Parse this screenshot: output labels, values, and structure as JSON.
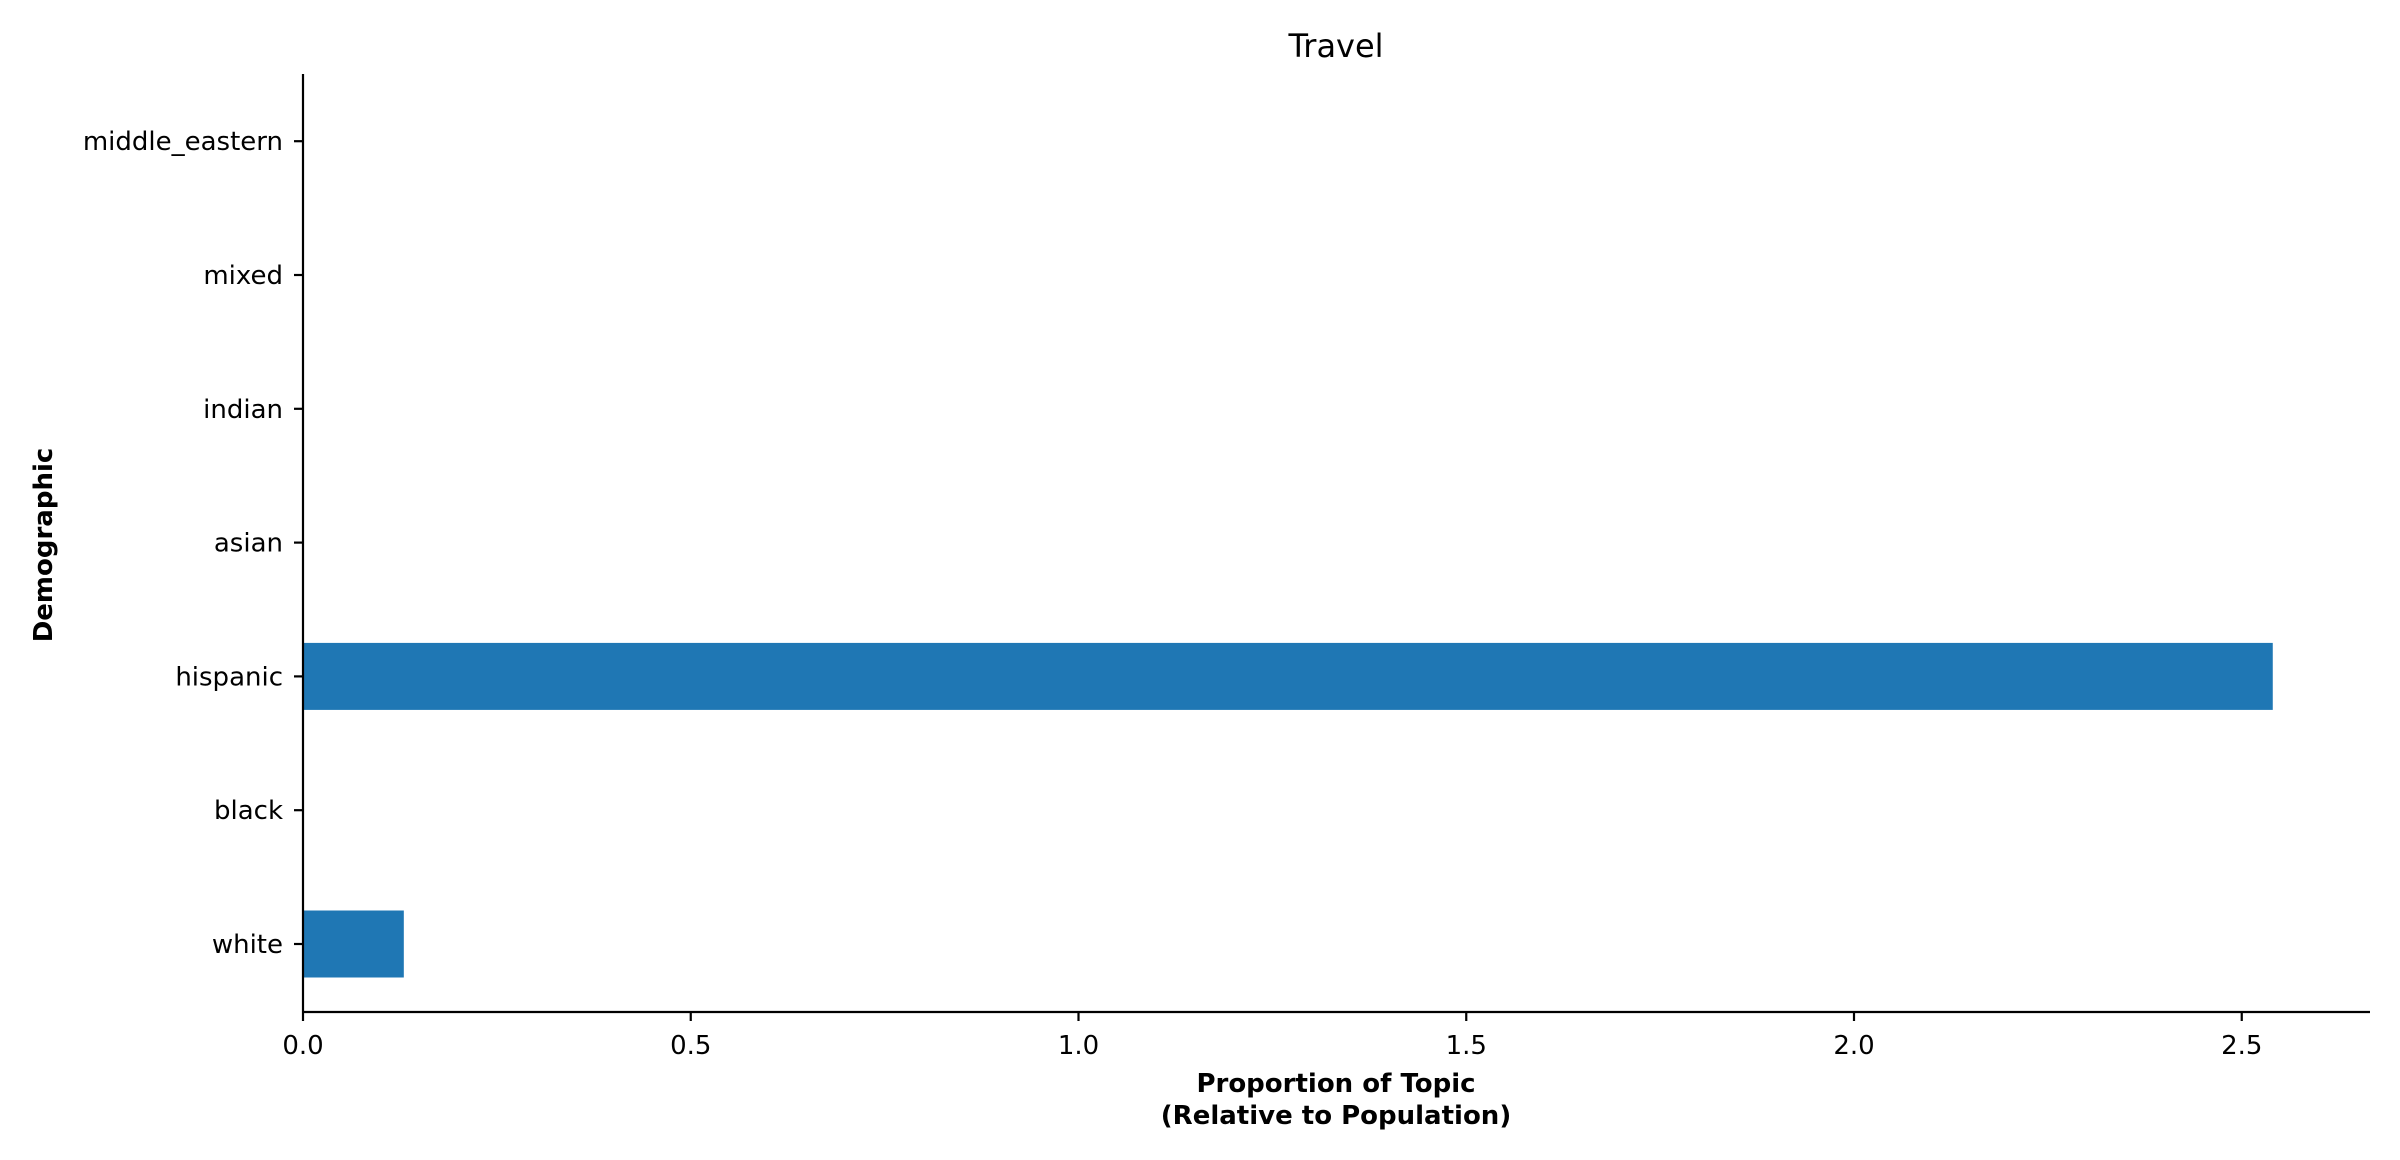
{
  "chart_data": {
    "type": "bar",
    "orientation": "horizontal",
    "title": "Travel",
    "xlabel_line1": "Proportion of Topic",
    "xlabel_line2": "(Relative to Population)",
    "ylabel": "Demographic",
    "categories": [
      "white",
      "black",
      "hispanic",
      "asian",
      "indian",
      "mixed",
      "middle_eastern"
    ],
    "values": [
      0.13,
      0,
      2.54,
      0,
      0,
      0,
      0
    ],
    "xlim": [
      0,
      2.665
    ],
    "xticks": [
      0.0,
      0.5,
      1.0,
      1.5,
      2.0,
      2.5
    ],
    "xtick_labels": [
      "0.0",
      "0.5",
      "1.0",
      "1.5",
      "2.0",
      "2.5"
    ],
    "grid": false,
    "legend": "none",
    "bar_color": "#1f77b4"
  }
}
